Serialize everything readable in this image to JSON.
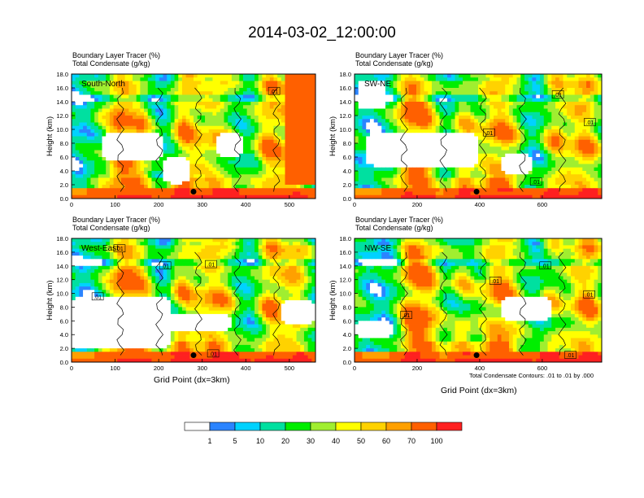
{
  "title": "2014-03-02_12:00:00",
  "colors": {
    "levels": [
      "#ffffff",
      "#2b84ff",
      "#00d2ff",
      "#00e0a0",
      "#00ee00",
      "#a0ee30",
      "#ffff00",
      "#ffd200",
      "#ffa000",
      "#ff6000",
      "#ff2020"
    ],
    "contour": "#000000"
  },
  "colorbar": {
    "labels": [
      "1",
      "5",
      "10",
      "20",
      "30",
      "40",
      "50",
      "60",
      "70",
      "100"
    ]
  },
  "contour_note": "Total Condensate Contours: .01 to .01 by .000",
  "chart_data": [
    {
      "type": "heatmap",
      "panel_label": "South-North",
      "header_line1": "Boundary Layer Tracer   (%)",
      "header_line2": "Total Condensate   (g/kg)",
      "ylabel": "Height (km)",
      "xlabel": "",
      "xlim": [
        0,
        560
      ],
      "ylim": [
        0,
        18
      ],
      "xticks": [
        "0",
        "100",
        "200",
        "300",
        "400",
        "500"
      ],
      "yticks": [
        "0.0",
        "2.0",
        "4.0",
        "6.0",
        "8.0",
        "10.0",
        "12.0",
        "14.0",
        "16.0",
        "18.0"
      ],
      "marker": {
        "x": 280,
        "y": 1.0
      },
      "contour_labels": [
        {
          "x": 465,
          "y": 15.5,
          "text": ".01"
        }
      ]
    },
    {
      "type": "heatmap",
      "panel_label": "SW-NE",
      "header_line1": "Boundary Layer Tracer   (%)",
      "header_line2": "Total Condensate   (g/kg)",
      "ylabel": "Height (km)",
      "xlabel": "",
      "xlim": [
        0,
        790
      ],
      "ylim": [
        0,
        18
      ],
      "xticks": [
        "0",
        "200",
        "400",
        "600"
      ],
      "yticks": [
        "0.0",
        "2.0",
        "4.0",
        "6.0",
        "8.0",
        "10.0",
        "12.0",
        "14.0",
        "16.0",
        "18.0"
      ],
      "marker": {
        "x": 390,
        "y": 1.0
      },
      "contour_labels": [
        {
          "x": 430,
          "y": 9.5,
          "text": ".01"
        },
        {
          "x": 580,
          "y": 2.4,
          "text": ".01"
        },
        {
          "x": 650,
          "y": 15.0,
          "text": ".01"
        },
        {
          "x": 752,
          "y": 11.0,
          "text": ".01"
        }
      ]
    },
    {
      "type": "heatmap",
      "panel_label": "West-East",
      "header_line1": "Boundary Layer Tracer   (%)",
      "header_line2": "Total Condensate   (g/kg)",
      "ylabel": "Height (km)",
      "xlabel": "Grid Point (dx=3km)",
      "xlim": [
        0,
        560
      ],
      "ylim": [
        0,
        18
      ],
      "xticks": [
        "0",
        "100",
        "200",
        "300",
        "400",
        "500"
      ],
      "yticks": [
        "0.0",
        "2.0",
        "4.0",
        "6.0",
        "8.0",
        "10.0",
        "12.0",
        "14.0",
        "16.0",
        "18.0"
      ],
      "marker": {
        "x": 280,
        "y": 1.0
      },
      "contour_labels": [
        {
          "x": 110,
          "y": 16.5,
          "text": ".01"
        },
        {
          "x": 215,
          "y": 14.0,
          "text": ".01"
        },
        {
          "x": 320,
          "y": 14.2,
          "text": ".01"
        },
        {
          "x": 60,
          "y": 9.5,
          "text": ".01"
        },
        {
          "x": 325,
          "y": 1.2,
          "text": ".01"
        }
      ]
    },
    {
      "type": "heatmap",
      "panel_label": "NW-SE",
      "header_line1": "Boundary Layer Tracer   (%)",
      "header_line2": "Total Condensate   (g/kg)",
      "ylabel": "Height (km)",
      "xlabel": "Grid Point (dx=3km)",
      "xlim": [
        0,
        790
      ],
      "ylim": [
        0,
        18
      ],
      "xticks": [
        "0",
        "200",
        "400",
        "600"
      ],
      "yticks": [
        "0.0",
        "2.0",
        "4.0",
        "6.0",
        "8.0",
        "10.0",
        "12.0",
        "14.0",
        "16.0",
        "18.0"
      ],
      "marker": {
        "x": 390,
        "y": 1.0
      },
      "contour_labels": [
        {
          "x": 165,
          "y": 6.8,
          "text": ".01"
        },
        {
          "x": 450,
          "y": 11.8,
          "text": ".01"
        },
        {
          "x": 610,
          "y": 14.0,
          "text": ".01"
        },
        {
          "x": 750,
          "y": 9.8,
          "text": ".01"
        },
        {
          "x": 690,
          "y": 1.0,
          "text": ".01"
        }
      ]
    }
  ]
}
